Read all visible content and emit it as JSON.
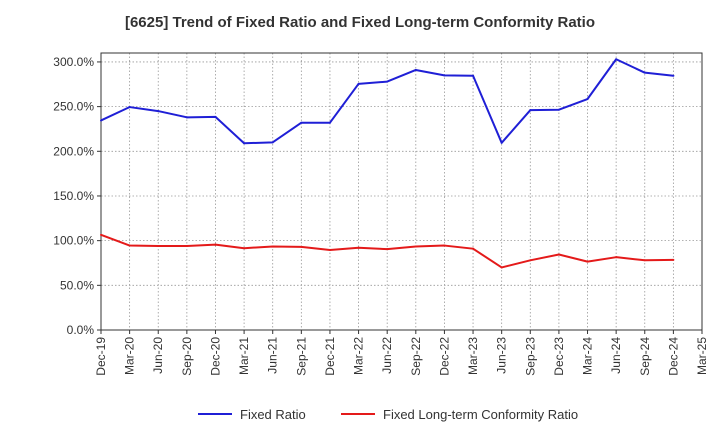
{
  "chart_data": {
    "type": "line",
    "title": "[6625]  Trend of Fixed Ratio and Fixed Long-term Conformity Ratio",
    "xlabel": "",
    "ylabel": "",
    "grid": true,
    "legend_position": "bottom",
    "x_tick_labels": [
      "Dec-19",
      "Mar-20",
      "Jun-20",
      "Sep-20",
      "Dec-20",
      "Mar-21",
      "Jun-21",
      "Sep-21",
      "Dec-21",
      "Mar-22",
      "Jun-22",
      "Sep-22",
      "Dec-22",
      "Mar-23",
      "Jun-23",
      "Sep-23",
      "Dec-23",
      "Mar-24",
      "Jun-24",
      "Sep-24",
      "Dec-24",
      "Mar-25"
    ],
    "y_tick_labels": [
      "0.0%",
      "50.0%",
      "100.0%",
      "150.0%",
      "200.0%",
      "250.0%",
      "300.0%"
    ],
    "ylim": [
      0,
      310
    ],
    "x": [
      "Dec-19",
      "Mar-20",
      "Jun-20",
      "Sep-20",
      "Dec-20",
      "Mar-21",
      "Jun-21",
      "Sep-21",
      "Dec-21",
      "Mar-22",
      "Jun-22",
      "Sep-22",
      "Dec-22",
      "Mar-23",
      "Jun-23",
      "Sep-23",
      "Dec-23",
      "Mar-24",
      "Jun-24",
      "Sep-24",
      "Dec-24"
    ],
    "series": [
      {
        "name": "Fixed Ratio",
        "color": "#1f1fd6",
        "values": [
          234.5,
          249.5,
          245.0,
          238.0,
          238.5,
          209.0,
          210.0,
          232.0,
          232.0,
          275.5,
          278.0,
          291.0,
          285.0,
          284.5,
          209.5,
          246.0,
          246.5,
          258.5,
          303.0,
          288.0,
          284.5
        ]
      },
      {
        "name": "Fixed Long-term Conformity Ratio",
        "color": "#e41a1a",
        "values": [
          106.5,
          94.5,
          94.0,
          94.0,
          95.5,
          91.5,
          93.5,
          93.0,
          89.5,
          92.0,
          90.5,
          93.5,
          94.5,
          91.0,
          70.0,
          78.0,
          84.5,
          76.5,
          81.5,
          78.0,
          78.5
        ]
      }
    ]
  }
}
